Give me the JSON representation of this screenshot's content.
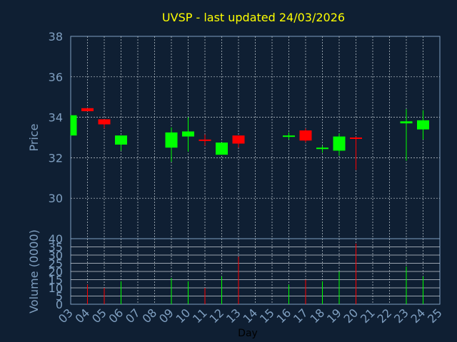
{
  "chart_data": {
    "type": "candlestick",
    "title": "UVSP - last updated 24/03/2026",
    "x_label": "Day",
    "x_tick_labels": [
      "03",
      "04",
      "05",
      "06",
      "07",
      "08",
      "09",
      "10",
      "11",
      "12",
      "13",
      "14",
      "15",
      "16",
      "17",
      "18",
      "19",
      "20",
      "21",
      "22",
      "23",
      "24",
      "25"
    ],
    "price_panel": {
      "ylabel": "Price",
      "ylim": [
        28,
        38
      ],
      "y_ticks": [
        30,
        32,
        34,
        36,
        38
      ],
      "grid": true
    },
    "volume_panel": {
      "ylabel": "Volume (0000)",
      "ylim": [
        0,
        40
      ],
      "y_ticks": [
        0,
        5,
        10,
        15,
        20,
        25,
        30,
        35,
        40
      ],
      "grid": true
    },
    "colors": {
      "background": "#0f1f33",
      "plot_background": "#0f1f33",
      "axis": "#7f9fc0",
      "grid": "#c8d0d8",
      "up": "#00ff00",
      "down": "#ff0000",
      "title": "#ffff00"
    },
    "candles": [
      {
        "day": "03",
        "open": 33.1,
        "high": 34.1,
        "low": 33.1,
        "close": 34.1,
        "volume": 0
      },
      {
        "day": "04",
        "open": 34.45,
        "high": 34.45,
        "low": 34.3,
        "close": 34.3,
        "volume": 12
      },
      {
        "day": "05",
        "open": 33.9,
        "high": 33.9,
        "low": 33.45,
        "close": 33.65,
        "volume": 10
      },
      {
        "day": "06",
        "open": 32.65,
        "high": 33.1,
        "low": 32.35,
        "close": 33.1,
        "volume": 14
      },
      {
        "day": "09",
        "open": 32.5,
        "high": 33.5,
        "low": 31.8,
        "close": 33.25,
        "volume": 16
      },
      {
        "day": "10",
        "open": 33.05,
        "high": 34.0,
        "low": 32.3,
        "close": 33.3,
        "volume": 14
      },
      {
        "day": "11",
        "open": 32.9,
        "high": 33.15,
        "low": 32.6,
        "close": 32.85,
        "volume": 10
      },
      {
        "day": "12",
        "open": 32.15,
        "high": 32.75,
        "low": 32.15,
        "close": 32.75,
        "volume": 17
      },
      {
        "day": "13",
        "open": 33.1,
        "high": 33.1,
        "low": 32.5,
        "close": 32.7,
        "volume": 29
      },
      {
        "day": "16",
        "open": 33.05,
        "high": 33.25,
        "low": 32.9,
        "close": 33.1,
        "volume": 12
      },
      {
        "day": "17",
        "open": 33.35,
        "high": 33.45,
        "low": 32.75,
        "close": 32.85,
        "volume": 15
      },
      {
        "day": "18",
        "open": 32.45,
        "high": 32.6,
        "low": 32.25,
        "close": 32.5,
        "volume": 14
      },
      {
        "day": "19",
        "open": 32.35,
        "high": 33.2,
        "low": 32.1,
        "close": 33.05,
        "volume": 20
      },
      {
        "day": "20",
        "open": 33.0,
        "high": 33.05,
        "low": 31.4,
        "close": 32.95,
        "volume": 37
      },
      {
        "day": "23",
        "open": 33.7,
        "high": 34.4,
        "low": 31.85,
        "close": 33.8,
        "volume": 23
      },
      {
        "day": "24",
        "open": 33.4,
        "high": 34.35,
        "low": 32.9,
        "close": 33.85,
        "volume": 17
      }
    ]
  }
}
